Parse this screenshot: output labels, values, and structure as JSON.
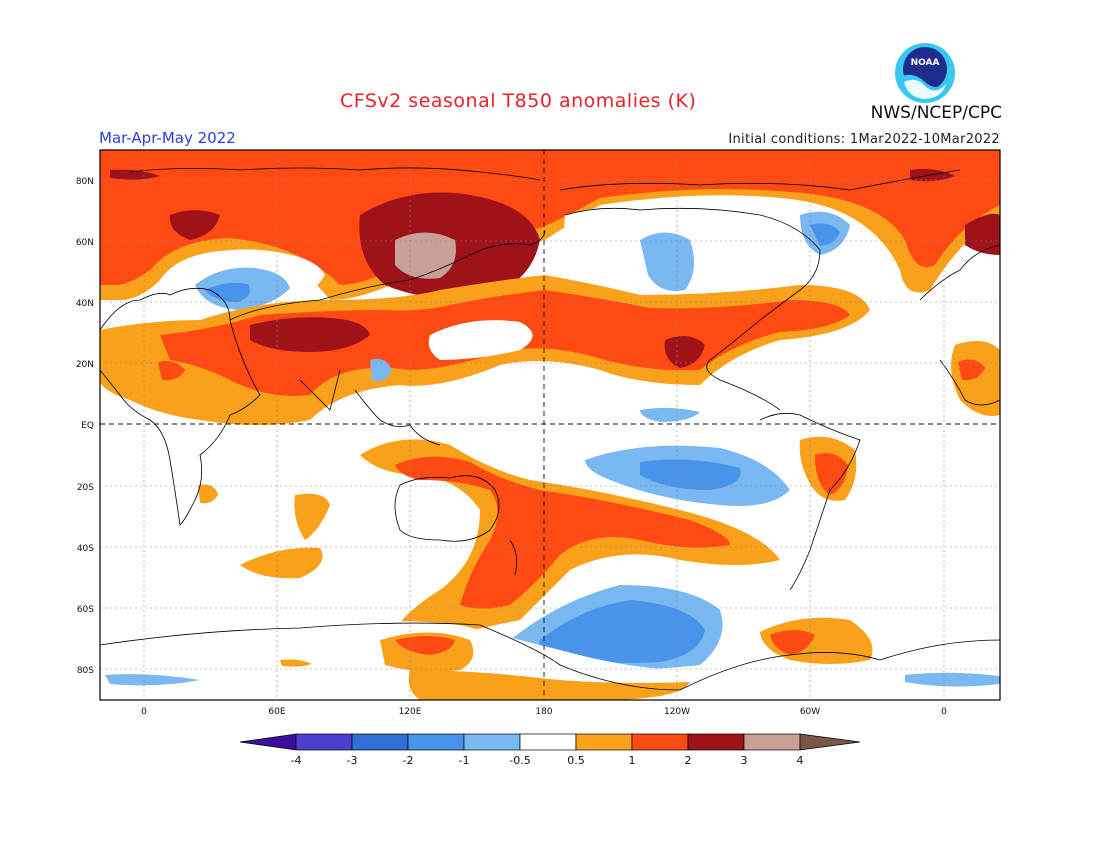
{
  "header": {
    "title": "CFSv2 seasonal T850 anomalies (K)",
    "season": "Mar-Apr-May 2022",
    "initial_conditions": "Initial conditions: 1Mar2022-10Mar2022",
    "agency": "NWS/NCEP/CPC",
    "logo_text": "NOAA"
  },
  "axes": {
    "lat_labels": [
      "80N",
      "60N",
      "40N",
      "20N",
      "EQ",
      "20S",
      "40S",
      "60S",
      "80S"
    ],
    "lon_labels": [
      "0",
      "60E",
      "120E",
      "180",
      "120W",
      "60W",
      "0"
    ]
  },
  "colorbar": {
    "labels": [
      "-4",
      "-3",
      "-2",
      "-1",
      "-0.5",
      "0.5",
      "1",
      "2",
      "3",
      "4"
    ],
    "colors": [
      "#3a0f9e",
      "#4a3fd0",
      "#2f6fd6",
      "#4a93ea",
      "#7ab8f2",
      "#ffffff",
      "#f9a11b",
      "#ff4a14",
      "#a0121a",
      "#c8a098",
      "#7a5548"
    ]
  }
}
